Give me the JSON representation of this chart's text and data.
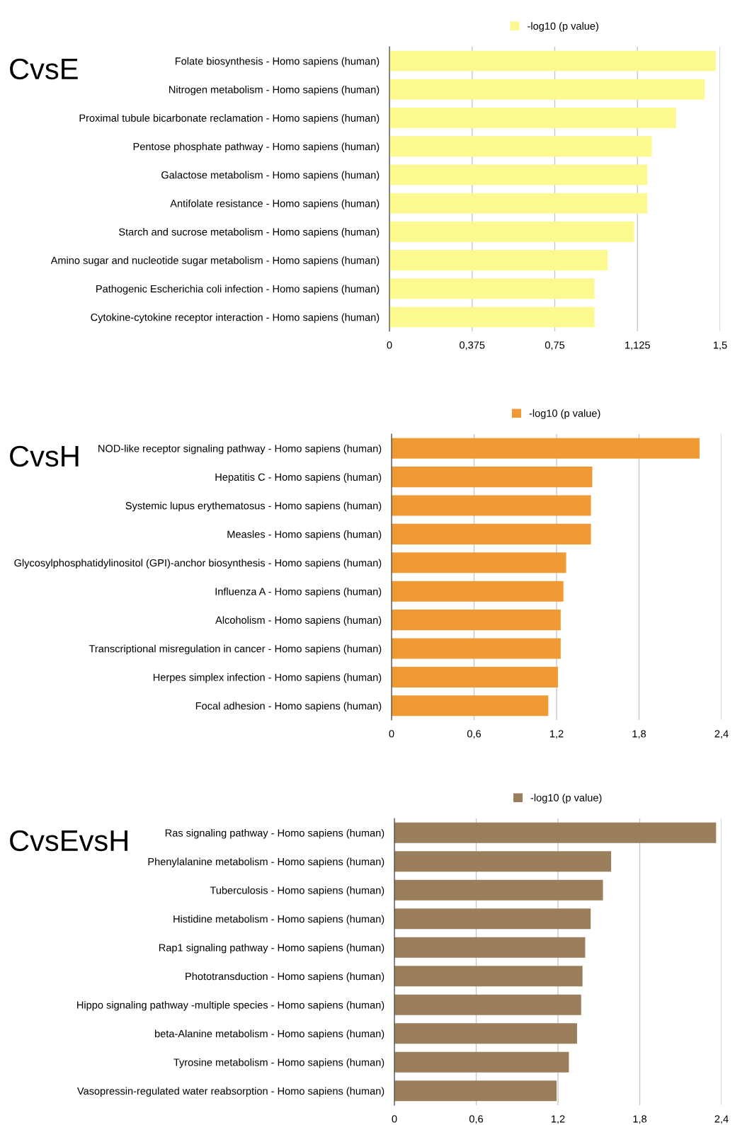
{
  "chart_data": [
    {
      "type": "bar",
      "orientation": "horizontal",
      "title": "CvsE",
      "categories": [
        "Folate biosynthesis - Homo sapiens (human)",
        "Nitrogen metabolism - Homo sapiens (human)",
        "Proximal tubule bicarbonate reclamation - Homo sapiens (human)",
        "Pentose phosphate pathway - Homo sapiens (human)",
        "Galactose metabolism - Homo sapiens (human)",
        "Antifolate resistance - Homo sapiens (human)",
        "Starch and sucrose metabolism - Homo sapiens (human)",
        "Amino sugar and nucleotide sugar metabolism - Homo sapiens (human)",
        "Pathogenic Escherichia coli infection - Homo sapiens (human)",
        "Cytokine-cytokine receptor interaction - Homo sapiens (human)"
      ],
      "series": [
        {
          "name": "-log10 (p value)",
          "color": "#fbf98f",
          "values": [
            1.48,
            1.43,
            1.3,
            1.19,
            1.17,
            1.17,
            1.11,
            0.99,
            0.93,
            0.93
          ]
        }
      ],
      "xlim": [
        0,
        1.5
      ],
      "xticks": [
        0,
        {
          "value": 0.375,
          "label": "0,375"
        },
        {
          "value": 0.75,
          "label": "0,75"
        },
        {
          "value": 1.125,
          "label": "1,125"
        },
        {
          "value": 1.5,
          "label": "1,5"
        }
      ],
      "grid": "x",
      "legend": "top"
    },
    {
      "type": "bar",
      "orientation": "horizontal",
      "title": "CvsH",
      "categories": [
        "NOD-like receptor signaling pathway - Homo sapiens (human)",
        "Hepatitis C - Homo sapiens (human)",
        "Systemic lupus erythematosus - Homo sapiens (human)",
        "Measles - Homo sapiens (human)",
        "Glycosylphosphatidylinositol (GPI)-anchor biosynthesis - Homo sapiens (human)",
        "Influenza A - Homo sapiens (human)",
        "Alcoholism - Homo sapiens (human)",
        "Transcriptional misregulation in cancer - Homo sapiens (human)",
        "Herpes simplex infection - Homo sapiens (human)",
        "Focal adhesion - Homo sapiens (human)"
      ],
      "series": [
        {
          "name": "-log10 (p value)",
          "color": "#f09a35",
          "values": [
            2.24,
            1.46,
            1.45,
            1.45,
            1.27,
            1.25,
            1.23,
            1.23,
            1.21,
            1.14
          ]
        }
      ],
      "xlim": [
        0,
        2.4
      ],
      "xticks": [
        0,
        {
          "value": 0.6,
          "label": "0,6"
        },
        {
          "value": 1.2,
          "label": "1,2"
        },
        {
          "value": 1.8,
          "label": "1,8"
        },
        {
          "value": 2.4,
          "label": "2,4"
        }
      ],
      "grid": "x",
      "legend": "top"
    },
    {
      "type": "bar",
      "orientation": "horizontal",
      "title": "CvsEvsH",
      "categories": [
        "Ras signaling pathway - Homo sapiens (human)",
        "Phenylalanine metabolism - Homo sapiens (human)",
        "Tuberculosis - Homo sapiens (human)",
        "Histidine metabolism - Homo sapiens (human)",
        "Rap1 signaling pathway - Homo sapiens (human)",
        "Phototransduction - Homo sapiens (human)",
        "Hippo signaling pathway -multiple species - Homo sapiens (human)",
        "beta-Alanine metabolism - Homo sapiens (human)",
        "Tyrosine metabolism - Homo sapiens (human)",
        "Vasopressin-regulated water reabsorption - Homo sapiens (human)"
      ],
      "series": [
        {
          "name": "-log10 (p value)",
          "color": "#9b7f5c",
          "values": [
            2.36,
            1.59,
            1.53,
            1.44,
            1.4,
            1.38,
            1.37,
            1.34,
            1.28,
            1.19
          ]
        }
      ],
      "xlim": [
        0,
        2.4
      ],
      "xticks": [
        0,
        {
          "value": 0.6,
          "label": "0,6"
        },
        {
          "value": 1.2,
          "label": "1,2"
        },
        {
          "value": 1.8,
          "label": "1,8"
        },
        {
          "value": 2.4,
          "label": "2,4"
        }
      ],
      "grid": "x",
      "legend": "top"
    }
  ]
}
